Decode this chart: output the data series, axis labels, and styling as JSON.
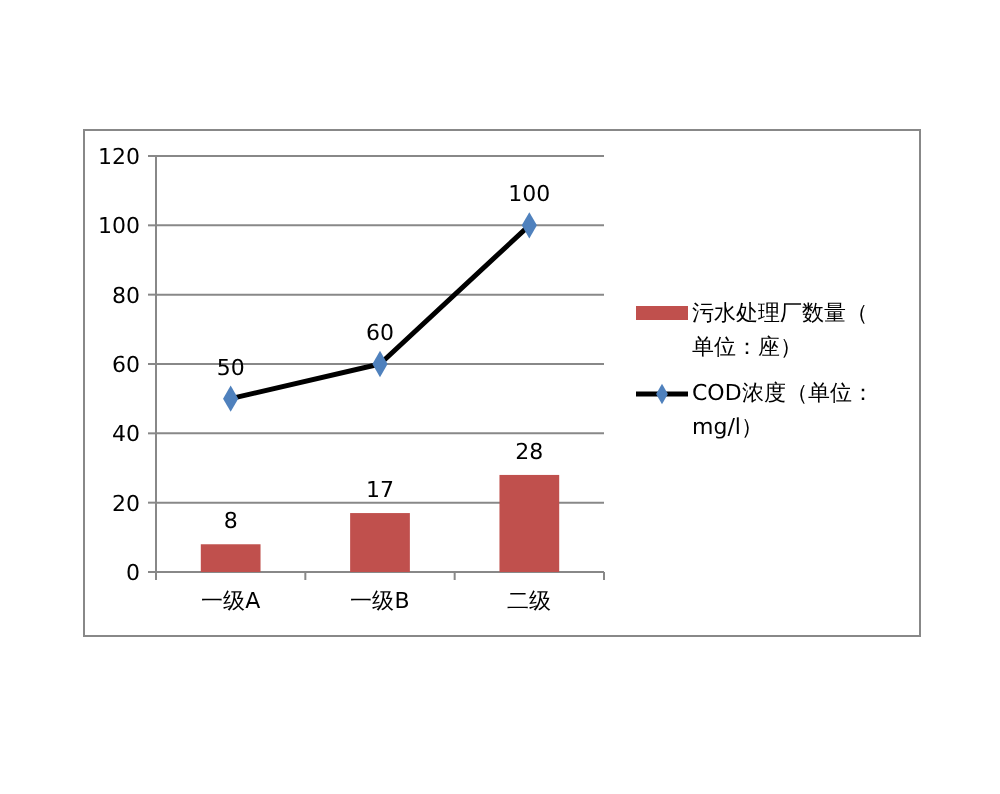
{
  "chart_data": {
    "type": "bar",
    "categories": [
      "一级A",
      "一级B",
      "二级"
    ],
    "series": [
      {
        "name": "污水处理厂数量（单位：座）",
        "color": "#c0504d",
        "values": [
          8,
          17,
          28
        ]
      },
      {
        "name": "COD浓度（单位：mg/l）",
        "color": "#000000",
        "type": "line",
        "values": [
          50,
          60,
          100
        ]
      }
    ],
    "ylim": [
      0,
      120
    ],
    "yticks": [
      0,
      20,
      40,
      60,
      80,
      100,
      120
    ],
    "grid": "y",
    "legend": "right",
    "marker": "diamond",
    "data_labels": true
  }
}
